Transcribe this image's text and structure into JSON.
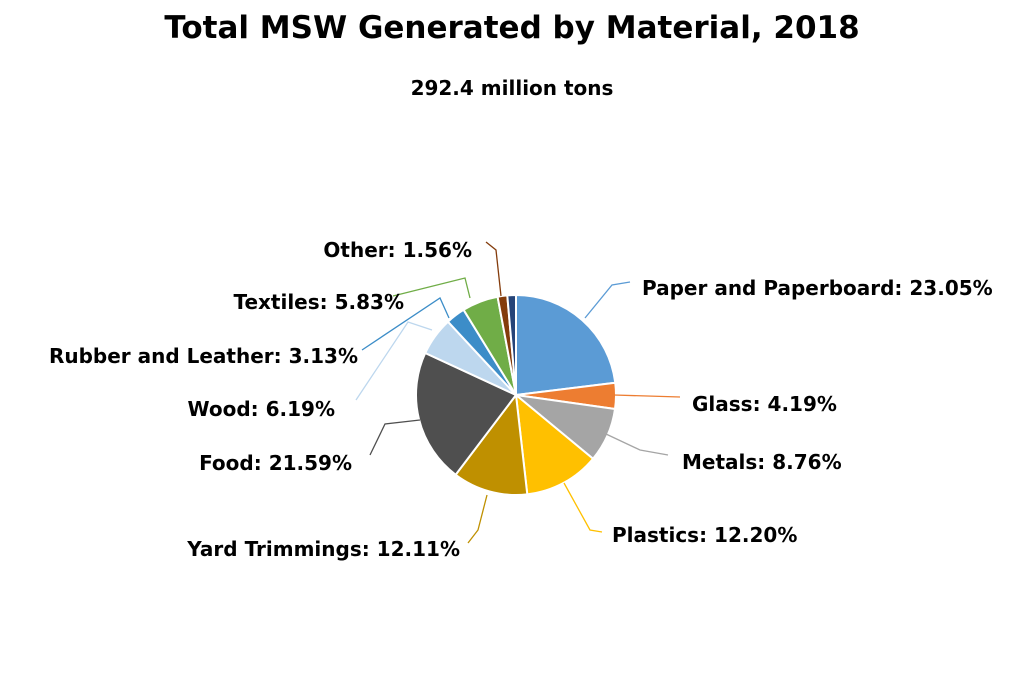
{
  "chart_data": {
    "type": "pie",
    "title": "Total MSW Generated by Material, 2018",
    "subtitle": "292.4 million tons",
    "start_angle": "12 o'clock, clockwise",
    "slices": [
      {
        "name": "Paper and Paperboard",
        "value": 23.05,
        "label": "Paper and Paperboard: 23.05%",
        "color": "#5B9BD5"
      },
      {
        "name": "Glass",
        "value": 4.19,
        "label": "Glass: 4.19%",
        "color": "#ED7D31"
      },
      {
        "name": "Metals",
        "value": 8.76,
        "label": "Metals: 8.76%",
        "color": "#A5A5A5"
      },
      {
        "name": "Plastics",
        "value": 12.2,
        "label": "Plastics: 12.20%",
        "color": "#FFC000"
      },
      {
        "name": "Yard Trimmings",
        "value": 12.11,
        "label": "Yard Trimmings: 12.11%",
        "color": "#BF9000"
      },
      {
        "name": "Food",
        "value": 21.59,
        "label": "Food: 21.59%",
        "color": "#4F4F4F"
      },
      {
        "name": "Wood",
        "value": 6.19,
        "label": "Wood: 6.19%",
        "color": "#BDD7EE"
      },
      {
        "name": "Rubber and Leather",
        "value": 3.13,
        "label": "Rubber and Leather: 3.13%",
        "color": "#3C8DC8"
      },
      {
        "name": "Textiles",
        "value": 5.83,
        "label": "Textiles: 5.83%",
        "color": "#70AD47"
      },
      {
        "name": "Other",
        "value": 1.56,
        "label": "Other: 1.56%",
        "color": "#843C0C"
      },
      {
        "name": "",
        "value": 1.39,
        "label": "",
        "color": "#264478"
      }
    ]
  }
}
